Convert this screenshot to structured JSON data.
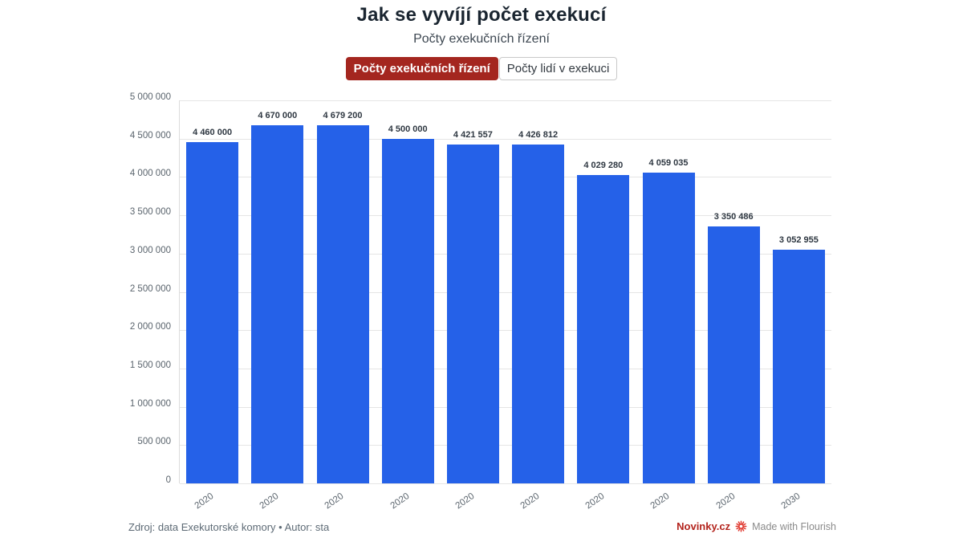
{
  "header": {
    "title": "Jak se vyvíjí počet exekucí",
    "subtitle": "Počty exekučních řízení"
  },
  "tabs": [
    {
      "label": "Počty exekučních řízení",
      "selected": true
    },
    {
      "label": "Počty lidí v exekuci",
      "selected": false
    }
  ],
  "chart_data": {
    "type": "bar",
    "title": "Jak se vyvíjí počet exekucí",
    "subtitle": "Počty exekučních řízení",
    "categories": [
      "2020",
      "2020",
      "2020",
      "2020",
      "2020",
      "2020",
      "2020",
      "2020",
      "2020",
      "2030"
    ],
    "values": [
      4460000,
      4670000,
      4679200,
      4500000,
      4421557,
      4426812,
      4029280,
      4059035,
      3350486,
      3052955
    ],
    "value_labels": [
      "4 460 000",
      "4 670 000",
      "4 679 200",
      "4 500 000",
      "4 421 557",
      "4 426 812",
      "4 029 280",
      "4 059 035",
      "3 350 486",
      "3 052 955"
    ],
    "xlabel": "",
    "ylabel": "",
    "ylim": [
      0,
      5000000
    ],
    "ytick_values": [
      0,
      500000,
      1000000,
      1500000,
      2000000,
      2500000,
      3000000,
      3500000,
      4000000,
      4500000,
      5000000
    ],
    "ytick_labels": [
      "0",
      "500 000",
      "1 000 000",
      "1 500 000",
      "2 000 000",
      "2 500 000",
      "3 000 000",
      "3 500 000",
      "4 000 000",
      "4 500 000",
      "5 000 000"
    ],
    "grid": "on",
    "legend_position": "top",
    "bar_color": "#2561e8"
  },
  "footer": {
    "source": "Zdroj: data Exekutorské komory • Autor: sta",
    "brand": "Novinky.cz",
    "made_with": "Made with Flourish"
  },
  "colors": {
    "bar": "#2561e8",
    "tab_selected_bg": "#a4261f",
    "brand_red": "#b3231c",
    "flourish_red": "#e0352b"
  }
}
